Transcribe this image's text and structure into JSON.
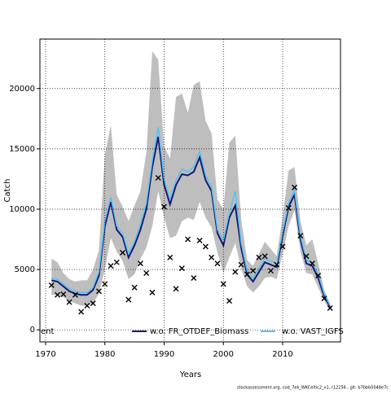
{
  "chart_data": {
    "type": "line",
    "xlabel": "Years",
    "ylabel": "Catch",
    "x": [
      1971,
      1972,
      1973,
      1974,
      1975,
      1976,
      1977,
      1978,
      1979,
      1980,
      1981,
      1982,
      1983,
      1984,
      1985,
      1986,
      1987,
      1988,
      1989,
      1990,
      1991,
      1992,
      1993,
      1994,
      1995,
      1996,
      1997,
      1998,
      1999,
      2000,
      2001,
      2002,
      2003,
      2004,
      2005,
      2006,
      2007,
      2008,
      2009,
      2010,
      2011,
      2012,
      2013,
      2014,
      2015,
      2016,
      2017,
      2018
    ],
    "series": [
      {
        "name": "ent",
        "color": "#bebebe",
        "lower": [
          2900,
          2900,
          2700,
          2400,
          2200,
          2000,
          2000,
          2200,
          3000,
          5000,
          7600,
          6500,
          5700,
          4200,
          4600,
          5900,
          6800,
          8600,
          11500,
          9300,
          7600,
          7800,
          9000,
          9300,
          9100,
          10600,
          9300,
          8500,
          6400,
          4700,
          6000,
          7200,
          5100,
          3600,
          3100,
          3600,
          4300,
          4400,
          4200,
          6300,
          8600,
          9900,
          6500,
          4700,
          4600,
          3500,
          2400,
          1600
        ],
        "upper": [
          5900,
          5600,
          4700,
          4200,
          4000,
          4100,
          4100,
          5000,
          6600,
          14500,
          17000,
          11200,
          10200,
          9000,
          10300,
          11500,
          14700,
          23100,
          22400,
          15200,
          14200,
          19300,
          19600,
          18000,
          20300,
          20600,
          17300,
          16300,
          10800,
          10000,
          15500,
          16100,
          9200,
          5800,
          5300,
          6300,
          7300,
          6700,
          6100,
          9400,
          13200,
          13500,
          9000,
          7000,
          7500,
          5500,
          3300,
          2200
        ]
      },
      {
        "name": "w.o. FR_OTDEF_Biomass",
        "color": "#191970",
        "values": [
          4100,
          4000,
          3600,
          3200,
          3000,
          2900,
          2900,
          3300,
          4500,
          8600,
          10600,
          8300,
          7700,
          6000,
          7000,
          8300,
          10000,
          13500,
          16000,
          12000,
          10400,
          12000,
          12900,
          12800,
          13100,
          14300,
          12400,
          11500,
          8000,
          7000,
          9300,
          10300,
          6800,
          4600,
          4000,
          4800,
          5600,
          5400,
          5200,
          7800,
          10200,
          11200,
          7500,
          5500,
          5300,
          4300,
          2800,
          1900
        ]
      },
      {
        "name": "w.o. VAST_IGFS",
        "color": "#4fc3f7",
        "values": [
          4300,
          4200,
          3800,
          3400,
          3200,
          3100,
          3100,
          3500,
          4800,
          9000,
          11000,
          8600,
          8000,
          6300,
          7300,
          8700,
          10500,
          14000,
          16800,
          12500,
          10800,
          12400,
          13300,
          13100,
          13500,
          14800,
          12800,
          11900,
          8300,
          7400,
          9700,
          11500,
          7200,
          4900,
          4300,
          5100,
          5900,
          5700,
          5500,
          8100,
          10500,
          11600,
          7800,
          5800,
          5600,
          4600,
          3000,
          2000
        ]
      }
    ],
    "catch": {
      "marker": "x",
      "color": "#000000",
      "values": [
        3700,
        2900,
        2950,
        2300,
        2900,
        1500,
        2000,
        2200,
        3200,
        3800,
        5300,
        5600,
        6400,
        2500,
        3500,
        5500,
        4700,
        3100,
        12600,
        10200,
        6000,
        3400,
        5100,
        7500,
        4300,
        7400,
        6900,
        6000,
        5500,
        3800,
        2400,
        4800,
        5400,
        4600,
        4900,
        6000,
        6100,
        4900,
        5400,
        6900,
        10100,
        11800,
        7800,
        6100,
        5500,
        4500,
        2600,
        1800
      ]
    },
    "xlim": [
      1969.04,
      2019.76
    ],
    "ylim": [
      -1000,
      24100
    ],
    "xticks": [
      1970,
      1980,
      1990,
      2000,
      2010
    ],
    "yticks": [
      0,
      5000,
      10000,
      15000,
      20000
    ],
    "grid": true,
    "legend": "bottom",
    "footer": "stockassessment.org, cod_7ek_WKCeltic2_v1, r12256 , git: b7bbb5048e7c"
  }
}
